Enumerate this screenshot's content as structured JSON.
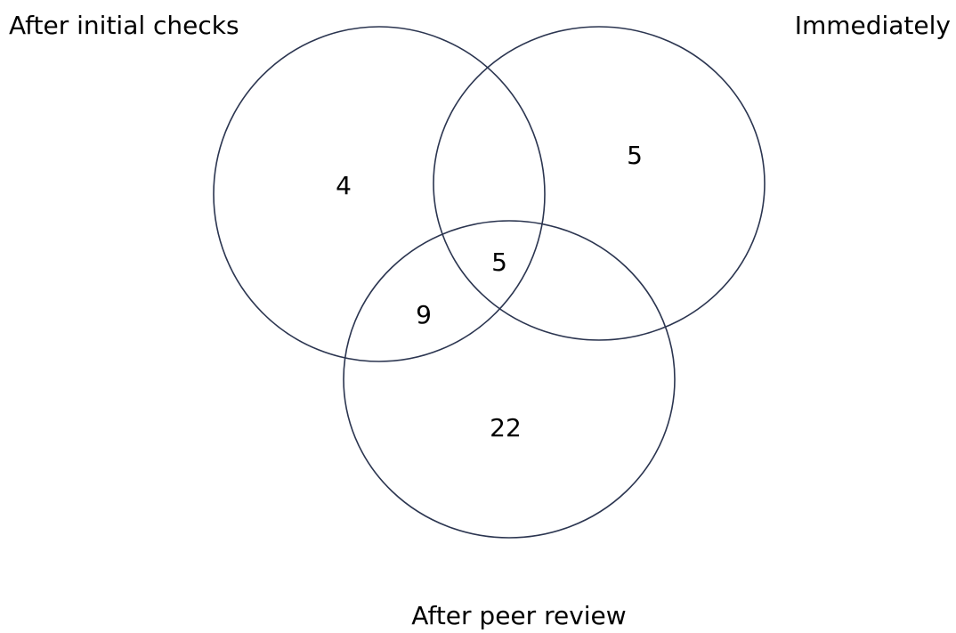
{
  "sets": [
    {
      "label": "After initial checks"
    },
    {
      "label": "Immediately"
    },
    {
      "label": "After peer review"
    }
  ],
  "regions": [
    {
      "count": 4
    },
    {
      "count": 5
    },
    {
      "count": 5
    },
    {
      "count": 9
    },
    {
      "count": 22
    }
  ]
}
